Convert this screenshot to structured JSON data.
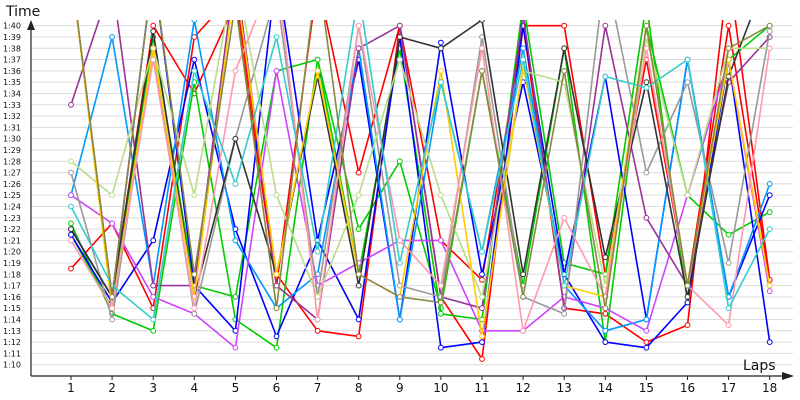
{
  "chart_data": {
    "type": "line",
    "ylabel": "Time",
    "xlabel": "Laps",
    "x": [
      1,
      2,
      3,
      4,
      5,
      6,
      7,
      8,
      9,
      10,
      11,
      12,
      13,
      14,
      15,
      16,
      17,
      18
    ],
    "ylim_seconds": [
      69,
      100.5
    ],
    "y_ticks": [
      "1:10",
      "1:11",
      "1:12",
      "1:13",
      "1:14",
      "1:15",
      "1:16",
      "1:17",
      "1:18",
      "1:19",
      "1:20",
      "1:21",
      "1:22",
      "1:23",
      "1:24",
      "1:25",
      "1:26",
      "1:27",
      "1:28",
      "1:29",
      "1:30",
      "1:31",
      "1:32",
      "1:33",
      "1:34",
      "1:35",
      "1:36",
      "1:37",
      "1:38",
      "1:39",
      "1:40"
    ],
    "grid": true,
    "series": [
      {
        "color": "#ff0000",
        "values": [
          "1:18.5",
          "1:22.5",
          "1:15",
          "1:39",
          "1:43",
          "1:18",
          "1:13",
          "1:12.5",
          "1:40",
          "1:21",
          "1:17.5",
          "1:40",
          "1:15",
          "1:14.5",
          "1:12",
          "1:13.5",
          "1:45",
          "1:17.5"
        ]
      },
      {
        "color": "#ff0000",
        "values": [
          "1:45",
          "1:16",
          "1:40",
          "1:34",
          "1:42",
          "1:17",
          "1:44",
          "1:27",
          "1:40",
          "1:16",
          "1:10.5",
          "1:40",
          "1:40",
          "1:18",
          "1:37",
          "1:17",
          "1:40",
          "1:17.5"
        ]
      },
      {
        "color": "#00cc00",
        "values": [
          "1:22.5",
          "1:14.5",
          "1:13",
          "1:35",
          "1:14",
          "1:11.5",
          "1:37",
          "1:22",
          "1:28",
          "1:15",
          "1:36",
          "1:17",
          "1:38",
          "1:12",
          "1:40",
          "1:25",
          "1:21.5",
          "1:23.5"
        ]
      },
      {
        "color": "#00cc00",
        "values": [
          "1:21.5",
          "1:15",
          "1:39",
          "1:17",
          "1:16",
          "1:36",
          "1:37",
          "1:18",
          "1:38",
          "1:14.5",
          "1:14",
          "1:42",
          "1:19",
          "1:18",
          "1:42",
          "1:15.5",
          "1:37",
          "1:40"
        ]
      },
      {
        "color": "#0000ff",
        "values": [
          "1:22",
          "1:16",
          "1:45",
          "1:17",
          "1:13",
          "1:45",
          "1:21",
          "1:14",
          "1:39",
          "1:11.5",
          "1:12",
          "1:40",
          "1:18",
          "1:12",
          "1:11.5",
          "1:15.5",
          "1:37",
          "1:12"
        ]
      },
      {
        "color": "#0000ff",
        "values": [
          "1:21.5",
          "1:15.5",
          "1:21",
          "1:37",
          "1:22",
          "1:12.5",
          "1:21",
          "1:37",
          "1:14",
          "1:38.5",
          "1:18",
          "1:35",
          "1:18",
          "1:35.5",
          "1:14",
          "1:37",
          "1:16",
          "1:25"
        ]
      },
      {
        "color": "#0099ff",
        "values": [
          "1:25",
          "1:39",
          "1:17",
          "1:40.5",
          "1:21",
          "1:15",
          "1:18",
          "1:38",
          "1:14",
          "1:35",
          "1:20",
          "1:38",
          "1:17",
          "1:13",
          "1:14",
          "1:37",
          "1:16",
          "1:26"
        ]
      },
      {
        "color": "#cc44ff",
        "values": [
          "1:25",
          "1:22.5",
          "1:16",
          "1:14.5",
          "1:11.5",
          "1:36",
          "1:17",
          "1:19",
          "1:21",
          "1:21",
          "1:13",
          "1:13",
          "1:16",
          "1:15",
          "1:13",
          "1:25",
          "1:37",
          "1:16.5"
        ]
      },
      {
        "color": "#993399",
        "values": [
          "1:33",
          "1:44",
          "1:17",
          "1:17",
          "1:45",
          "1:17",
          "1:14",
          "1:38",
          "1:40",
          "1:16",
          "1:15",
          "1:41",
          "1:15",
          "1:40",
          "1:23",
          "1:17",
          "1:35",
          "1:39"
        ]
      },
      {
        "color": "#999999",
        "values": [
          "1:27",
          "1:14",
          "1:38",
          "1:14.5",
          "1:30",
          "1:43",
          "1:16",
          "1:40",
          "1:17",
          "1:16",
          "1:39",
          "1:16",
          "1:14.5",
          "1:45",
          "1:27",
          "1:35",
          "1:19",
          "1:39.5"
        ]
      },
      {
        "color": "#333333",
        "values": [
          "1:22",
          "1:16",
          "1:39.5",
          "1:16",
          "1:30",
          "1:18",
          "1:35.5",
          "1:17",
          "1:39",
          "1:38",
          "1:40.5",
          "1:18",
          "1:38",
          "1:19.5",
          "1:35",
          "1:16",
          "1:35.5",
          "1:45"
        ]
      },
      {
        "color": "#bbdd88",
        "values": [
          "1:28",
          "1:25",
          "1:38",
          "1:25",
          "1:45",
          "1:25",
          "1:16",
          "1:25",
          "1:37",
          "1:25",
          "1:16",
          "1:36",
          "1:35",
          "1:17",
          "1:39",
          "1:25",
          "1:38",
          "1:38"
        ]
      },
      {
        "color": "#ffcc00",
        "values": [
          "1:45",
          "1:15",
          "1:38",
          "1:16",
          "1:44",
          "1:18",
          "1:36",
          "1:18",
          "1:16",
          "1:36",
          "1:12.5",
          "1:36.5",
          "1:17",
          "1:16",
          "1:40",
          "1:17",
          "1:37",
          "1:17"
        ]
      },
      {
        "color": "#ff99aa",
        "values": [
          "1:21",
          "1:15",
          "1:37",
          "1:15",
          "1:36",
          "1:45",
          "1:14",
          "1:40",
          "1:21",
          "1:17",
          "1:38",
          "1:13",
          "1:23",
          "1:16",
          "1:38",
          "1:17",
          "1:13.5",
          "1:38"
        ]
      },
      {
        "color": "#33cccc",
        "values": [
          "1:24",
          "1:17",
          "1:14",
          "1:36",
          "1:26",
          "1:39",
          "1:20",
          "1:43",
          "1:19",
          "1:35",
          "1:20",
          "1:37",
          "1:17",
          "1:35.5",
          "1:34.5",
          "1:37",
          "1:15",
          "1:22"
        ]
      },
      {
        "color": "#888844",
        "values": [
          "1:45",
          "1:16",
          "1:45",
          "1:18",
          "1:42",
          "1:15",
          "1:45",
          "1:18",
          "1:16",
          "1:15.5",
          "1:36",
          "1:16",
          "1:36",
          "1:15",
          "1:40",
          "1:17",
          "1:38",
          "1:40"
        ]
      }
    ]
  }
}
